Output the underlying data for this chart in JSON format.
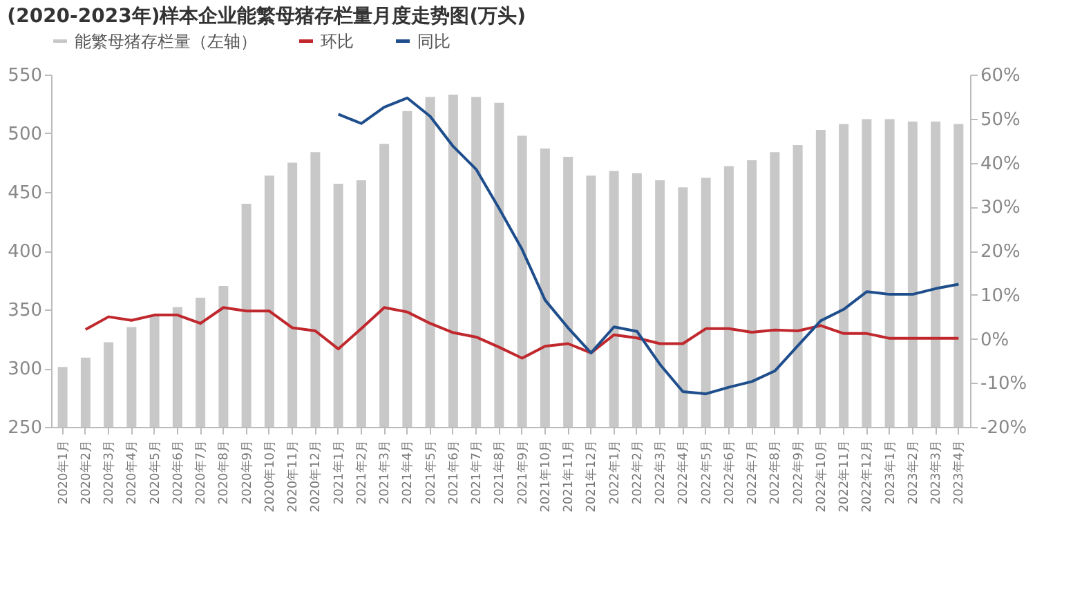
{
  "chart_data": {
    "type": "bar",
    "title": "(2020-2023年)样本企业能繁母猪存栏量月度走势图(万头)",
    "categories": [
      "2020年1月",
      "2020年2月",
      "2020年3月",
      "2020年4月",
      "2020年5月",
      "2020年6月",
      "2020年7月",
      "2020年8月",
      "2020年9月",
      "2020年10月",
      "2020年11月",
      "2020年12月",
      "2021年1月",
      "2021年2月",
      "2021年3月",
      "2021年4月",
      "2021年5月",
      "2021年6月",
      "2021年7月",
      "2021年8月",
      "2021年9月",
      "2021年10月",
      "2021年11月",
      "2021年12月",
      "2022年1月",
      "2022年2月",
      "2022年3月",
      "2022年4月",
      "2022年5月",
      "2022年6月",
      "2022年7月",
      "2022年8月",
      "2022年9月",
      "2022年10月",
      "2022年11月",
      "2022年12月",
      "2023年1月",
      "2023年2月",
      "2023年3月",
      "2023年4月"
    ],
    "series": [
      {
        "name": "能繁母猪存栏量（左轴）",
        "color": "#c8c8c8",
        "values": [
          301,
          309,
          322,
          335,
          345,
          352,
          360,
          370,
          440,
          464,
          475,
          484,
          457,
          460,
          491,
          519,
          531,
          533,
          531,
          526,
          498,
          487,
          480,
          464,
          468,
          466,
          460,
          454,
          462,
          472,
          477,
          484,
          490,
          503,
          508,
          512,
          512,
          510,
          510,
          508
        ]
      },
      {
        "name": "环比",
        "type": "line",
        "axis": "y2",
        "color": "#c0282d",
        "values": [
          null,
          2.1,
          5.0,
          4.2,
          5.4,
          5.4,
          3.5,
          7.1,
          6.3,
          6.3,
          2.5,
          1.8,
          -2.3,
          2.3,
          7.1,
          6.1,
          3.5,
          1.4,
          0.4,
          -1.9,
          -4.4,
          -1.7,
          -1.1,
          -3.2,
          0.9,
          0.2,
          -1.1,
          -1.1,
          2.3,
          2.3,
          1.5,
          2.0,
          1.8,
          3.0,
          1.2,
          1.2,
          0.1,
          0.1,
          0.1,
          0.1
        ]
      },
      {
        "name": "同比",
        "type": "line",
        "axis": "y2",
        "color": "#1f4e8c",
        "values": [
          null,
          null,
          null,
          null,
          null,
          null,
          null,
          null,
          null,
          null,
          null,
          null,
          51.0,
          48.9,
          52.6,
          54.7,
          50.5,
          43.7,
          38.5,
          29.6,
          20.3,
          8.8,
          2.5,
          -3.2,
          2.7,
          1.7,
          -5.8,
          -12.0,
          -12.5,
          -11.0,
          -9.7,
          -7.3,
          -1.6,
          4.1,
          6.7,
          10.7,
          10.1,
          10.1,
          11.4,
          12.4
        ]
      }
    ],
    "ylim": [
      250,
      550
    ],
    "yticks": [
      250,
      300,
      350,
      400,
      450,
      500,
      550
    ],
    "y2lim": [
      -20,
      60
    ],
    "y2ticks": [
      {
        "value": -20,
        "label": "-20%"
      },
      {
        "value": -10,
        "label": "-10%"
      },
      {
        "value": 0,
        "label": "0%"
      },
      {
        "value": 10,
        "label": "10%"
      },
      {
        "value": 20,
        "label": "20%"
      },
      {
        "value": 30,
        "label": "30%"
      },
      {
        "value": 40,
        "label": "40%"
      },
      {
        "value": 50,
        "label": "50%"
      },
      {
        "value": 60,
        "label": "60%"
      }
    ],
    "legend": "top",
    "grid": false
  }
}
